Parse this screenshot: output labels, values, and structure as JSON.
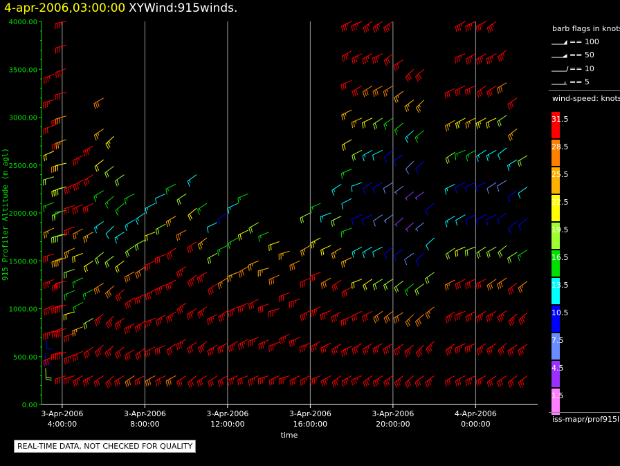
{
  "title": {
    "datetime": "4-apr-2006,03:00:00",
    "product": "XYWind:915winds."
  },
  "footer": {
    "note": "REAL-TIME DATA, NOT CHECKED FOR QUALITY"
  },
  "legend": {
    "barb_title": "barb flags in knots",
    "barb_items": [
      "== 100",
      "== 50",
      "== 10",
      "== 5"
    ],
    "speed_title": "wind-speed: knots",
    "speed_items": [
      {
        "label": "31.5",
        "color": "#ff0000"
      },
      {
        "label": "28.5",
        "color": "#ff8000"
      },
      {
        "label": "25.5",
        "color": "#ffb000"
      },
      {
        "label": "22.5",
        "color": "#ffff00"
      },
      {
        "label": "19.5",
        "color": "#a0ff30"
      },
      {
        "label": "16.5",
        "color": "#00e000"
      },
      {
        "label": "13.5",
        "color": "#00ffff"
      },
      {
        "label": "10.5",
        "color": "#0000ff"
      },
      {
        "label": "7.5",
        "color": "#6a8cff"
      },
      {
        "label": "4.5",
        "color": "#9a30ff"
      },
      {
        "label": "1.5",
        "color": "#ff80ff"
      }
    ],
    "source": "iss-mapr/prof915l"
  },
  "chart_data": {
    "type": "scatter",
    "title": "4-apr-2006,03:00:00 XYWind:915winds.",
    "xlabel": "time",
    "ylabel": "915 Profiler Altitude (m agl)",
    "ylim": [
      0,
      4000
    ],
    "yticks": [
      "0.00",
      "500.00",
      "1000.00",
      "1500.00",
      "2000.00",
      "2500.00",
      "3000.00",
      "3500.00",
      "4000.00"
    ],
    "xticks": [
      {
        "date": "3-Apr-2006",
        "time": "4:00:00"
      },
      {
        "date": "3-Apr-2006",
        "time": "8:00:00"
      },
      {
        "date": "3-Apr-2006",
        "time": "12:00:00"
      },
      {
        "date": "3-Apr-2006",
        "time": "16:00:00"
      },
      {
        "date": "3-Apr-2006",
        "time": "20:00:00"
      },
      {
        "date": "4-Apr-2006",
        "time": "0:00:00"
      }
    ],
    "xlim_hours": [
      3.0,
      27.0
    ],
    "grid": "vertical lines at x ticks",
    "speed_colors": [
      "#ff80ff",
      "#9a30ff",
      "#6a8cff",
      "#0000ff",
      "#00ffff",
      "#00e000",
      "#a0ff30",
      "#ffff00",
      "#ffb000",
      "#ff8000",
      "#ff0000"
    ],
    "speed_bins": [
      3,
      6,
      9,
      12,
      15,
      18,
      21,
      24,
      27,
      30
    ],
    "wind_profiles": [
      {
        "time": 3.2,
        "top": 700,
        "bottom": 380,
        "wdir": 180,
        "speed": [
          9,
          11,
          18
        ]
      },
      {
        "time": 3.6,
        "top": 3450,
        "bottom": 500,
        "wdir": 250,
        "speed": [
          34,
          33,
          30,
          22,
          18,
          16,
          24,
          31,
          33,
          34,
          33,
          32
        ]
      },
      {
        "time": 4.0,
        "top": 3000,
        "bottom": 550,
        "wdir": 250,
        "speed": [
          33,
          32,
          28,
          23,
          20,
          18,
          25,
          30,
          33,
          33,
          32
        ]
      },
      {
        "time": 4.2,
        "top": 4000,
        "bottom": 300,
        "wdir": 255,
        "speed": [
          35,
          34,
          33,
          31,
          29,
          26,
          22,
          19,
          17,
          19,
          25,
          31,
          33,
          34,
          33,
          31
        ]
      },
      {
        "time": 4.6,
        "top": 2300,
        "bottom": 300,
        "wdir": 250,
        "speed": [
          33,
          32,
          30,
          25,
          19,
          16,
          22,
          30,
          33,
          33
        ]
      },
      {
        "time": 5.0,
        "top": 2600,
        "bottom": 300,
        "wdir": 245,
        "speed": [
          33,
          33,
          31,
          27,
          22,
          17,
          15,
          24,
          32,
          33
        ]
      },
      {
        "time": 5.5,
        "top": 2700,
        "bottom": 300,
        "wdir": 240,
        "speed": [
          33,
          32,
          30,
          26,
          21,
          16,
          19,
          30,
          33
        ]
      },
      {
        "time": 6.0,
        "top": 3200,
        "bottom": 300,
        "wdir": 235,
        "speed": [
          28,
          25,
          21,
          17,
          14,
          20,
          29,
          33,
          33,
          32
        ]
      },
      {
        "time": 6.5,
        "top": 2800,
        "bottom": 300,
        "wdir": 230,
        "speed": [
          23,
          19,
          16,
          12,
          18,
          28,
          33,
          33,
          31
        ]
      },
      {
        "time": 7.0,
        "top": 2400,
        "bottom": 300,
        "wdir": 235,
        "speed": [
          20,
          16,
          14,
          22,
          30,
          33,
          32,
          30
        ]
      },
      {
        "time": 7.5,
        "top": 2200,
        "bottom": 300,
        "wdir": 240,
        "speed": [
          17,
          14,
          19,
          28,
          33,
          33,
          31,
          29
        ]
      },
      {
        "time": 8.0,
        "top": 2000,
        "bottom": 300,
        "wdir": 240,
        "speed": [
          13,
          18,
          28,
          33,
          33,
          32,
          30
        ]
      },
      {
        "time": 8.5,
        "top": 2100,
        "bottom": 300,
        "wdir": 245,
        "speed": [
          14,
          22,
          31,
          33,
          33,
          31,
          29
        ]
      },
      {
        "time": 9.0,
        "top": 2200,
        "bottom": 300,
        "wdir": 245,
        "speed": [
          12,
          20,
          30,
          33,
          34,
          32,
          30
        ]
      },
      {
        "time": 9.5,
        "top": 2300,
        "bottom": 300,
        "wdir": 240,
        "speed": [
          16,
          24,
          31,
          34,
          33,
          31,
          28
        ]
      },
      {
        "time": 10.0,
        "top": 2200,
        "bottom": 300,
        "wdir": 240,
        "speed": [
          18,
          27,
          33,
          34,
          33,
          30
        ]
      },
      {
        "time": 10.5,
        "top": 2400,
        "bottom": 300,
        "wdir": 235,
        "speed": [
          14,
          21,
          30,
          34,
          34,
          32,
          30
        ]
      },
      {
        "time": 11.0,
        "top": 2100,
        "bottom": 300,
        "wdir": 235,
        "speed": [
          16,
          26,
          33,
          34,
          33,
          31
        ]
      },
      {
        "time": 11.5,
        "top": 1900,
        "bottom": 300,
        "wdir": 240,
        "speed": [
          12,
          20,
          31,
          34,
          33,
          30
        ]
      },
      {
        "time": 12.0,
        "top": 2000,
        "bottom": 300,
        "wdir": 240,
        "speed": [
          11,
          16,
          27,
          33,
          34,
          32
        ]
      },
      {
        "time": 12.5,
        "top": 2100,
        "bottom": 300,
        "wdir": 245,
        "speed": [
          13,
          17,
          26,
          33,
          34,
          33
        ]
      },
      {
        "time": 13.0,
        "top": 2200,
        "bottom": 300,
        "wdir": 245,
        "speed": [
          15,
          21,
          29,
          34,
          34,
          32
        ]
      },
      {
        "time": 13.5,
        "top": 1900,
        "bottom": 300,
        "wdir": 245,
        "speed": [
          19,
          25,
          32,
          34,
          33
        ]
      },
      {
        "time": 14.0,
        "top": 1800,
        "bottom": 300,
        "wdir": 250,
        "speed": [
          17,
          24,
          31,
          34,
          34
        ]
      },
      {
        "time": 14.5,
        "top": 1700,
        "bottom": 300,
        "wdir": 250,
        "speed": [
          21,
          29,
          33,
          34,
          33
        ]
      },
      {
        "time": 15.0,
        "top": 1600,
        "bottom": 300,
        "wdir": 250,
        "speed": [
          24,
          31,
          34,
          34
        ]
      },
      {
        "time": 15.5,
        "top": 1500,
        "bottom": 300,
        "wdir": 250,
        "speed": [
          28,
          33,
          34,
          34
        ]
      },
      {
        "time": 16.0,
        "top": 2000,
        "bottom": 300,
        "wdir": 245,
        "speed": [
          19,
          25,
          31,
          34,
          34,
          33
        ]
      },
      {
        "time": 16.5,
        "top": 2100,
        "bottom": 300,
        "wdir": 245,
        "speed": [
          16,
          23,
          30,
          33,
          34,
          33
        ]
      },
      {
        "time": 17.0,
        "top": 2000,
        "bottom": 300,
        "wdir": 245,
        "speed": [
          14,
          21,
          29,
          34,
          34,
          34
        ]
      },
      {
        "time": 17.5,
        "top": 2300,
        "bottom": 300,
        "wdir": 240,
        "speed": [
          13,
          18,
          25,
          32,
          34,
          34,
          33
        ]
      },
      {
        "time": 18.0,
        "top": 4000,
        "bottom": 300,
        "wdir": 245,
        "speed": [
          34,
          33,
          31,
          26,
          21,
          17,
          12,
          15,
          24,
          31,
          34,
          34,
          33
        ]
      },
      {
        "time": 18.5,
        "top": 4000,
        "bottom": 300,
        "wdir": 245,
        "speed": [
          34,
          33,
          30,
          24,
          18,
          12,
          10,
          14,
          22,
          30,
          34,
          34
        ]
      },
      {
        "time": 19.0,
        "top": 4000,
        "bottom": 300,
        "wdir": 240,
        "speed": [
          34,
          33,
          29,
          21,
          14,
          10,
          9,
          13,
          21,
          30,
          34,
          34
        ]
      },
      {
        "time": 19.5,
        "top": 4000,
        "bottom": 300,
        "wdir": 240,
        "speed": [
          34,
          33,
          28,
          19,
          12,
          9,
          8,
          12,
          20,
          29,
          34,
          33
        ]
      },
      {
        "time": 20.0,
        "top": 4000,
        "bottom": 300,
        "wdir": 235,
        "speed": [
          34,
          32,
          27,
          17,
          11,
          8,
          7,
          11,
          19,
          28,
          33,
          33
        ]
      },
      {
        "time": 20.5,
        "top": 3600,
        "bottom": 300,
        "wdir": 235,
        "speed": [
          32,
          26,
          16,
          10,
          6,
          5,
          9,
          18,
          28,
          33,
          33
        ]
      },
      {
        "time": 21.0,
        "top": 3500,
        "bottom": 300,
        "wdir": 230,
        "speed": [
          31,
          24,
          14,
          8,
          5,
          4,
          8,
          17,
          27,
          33,
          32
        ]
      },
      {
        "time": 21.5,
        "top": 3500,
        "bottom": 300,
        "wdir": 230,
        "speed": [
          32,
          24,
          15,
          9,
          5,
          6,
          10,
          19,
          29,
          33,
          32
        ]
      },
      {
        "time": 22.0,
        "top": 2100,
        "bottom": 300,
        "wdir": 230,
        "speed": [
          9,
          12,
          18,
          27,
          33,
          33
        ]
      },
      {
        "time": 23.0,
        "top": 3300,
        "bottom": 300,
        "wdir": 240,
        "speed": [
          30,
          26,
          20,
          14,
          13,
          18,
          27,
          33,
          33,
          32
        ]
      },
      {
        "time": 23.5,
        "top": 4000,
        "bottom": 300,
        "wdir": 245,
        "speed": [
          34,
          33,
          30,
          23,
          15,
          10,
          12,
          21,
          31,
          34,
          33,
          32
        ]
      },
      {
        "time": 24.0,
        "top": 4000,
        "bottom": 300,
        "wdir": 245,
        "speed": [
          34,
          33,
          31,
          24,
          16,
          10,
          11,
          20,
          31,
          34,
          34,
          33
        ]
      },
      {
        "time": 24.5,
        "top": 4000,
        "bottom": 300,
        "wdir": 240,
        "speed": [
          34,
          33,
          31,
          23,
          14,
          9,
          10,
          19,
          30,
          34,
          34,
          33
        ]
      },
      {
        "time": 25.0,
        "top": 4000,
        "bottom": 300,
        "wdir": 240,
        "speed": [
          34,
          33,
          30,
          21,
          13,
          8,
          9,
          18,
          29,
          34,
          34,
          32
        ]
      },
      {
        "time": 25.5,
        "top": 3700,
        "bottom": 300,
        "wdir": 235,
        "speed": [
          33,
          29,
          19,
          12,
          8,
          9,
          18,
          29,
          34,
          33,
          32
        ]
      },
      {
        "time": 26.0,
        "top": 3200,
        "bottom": 300,
        "wdir": 235,
        "speed": [
          30,
          24,
          14,
          9,
          11,
          20,
          30,
          34,
          33,
          31
        ]
      },
      {
        "time": 26.5,
        "top": 2600,
        "bottom": 300,
        "wdir": 235,
        "speed": [
          18,
          12,
          10,
          16,
          27,
          33,
          33,
          31
        ]
      }
    ]
  }
}
